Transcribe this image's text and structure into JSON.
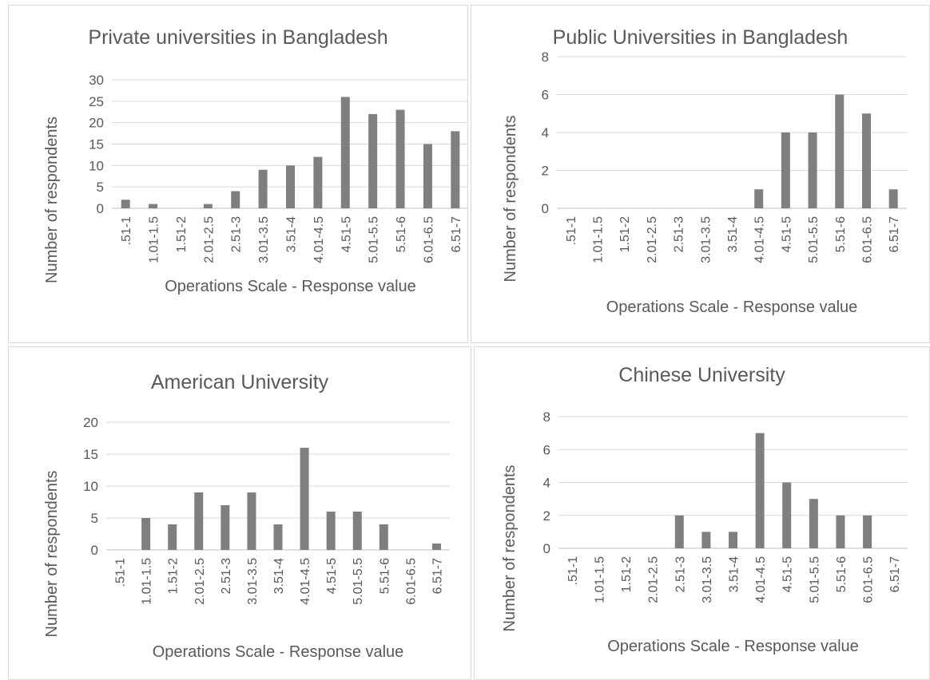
{
  "chart_data": [
    {
      "type": "bar",
      "title": "Private universities in Bangladesh",
      "xlabel": "Operations Scale - Response value",
      "ylabel": "Number of respondents",
      "categories": [
        ".51-1",
        "1.01-1.5",
        "1.51-2",
        "2.01-2.5",
        "2.51-3",
        "3.01-3.5",
        "3.51-4",
        "4.01-4.5",
        "4.51-5",
        "5.01-5.5",
        "5.51-6",
        "6.01-6.5",
        "6.51-7"
      ],
      "values": [
        2,
        1,
        0,
        1,
        4,
        9,
        10,
        12,
        26,
        22,
        23,
        15,
        18
      ],
      "ylim": [
        0,
        30
      ],
      "yticks": [
        0,
        5,
        10,
        15,
        20,
        25,
        30
      ],
      "grid": true,
      "color": "#7f7f7f"
    },
    {
      "type": "bar",
      "title": "Public Universities in Bangladesh",
      "xlabel": "Operations Scale - Response value",
      "ylabel": "Number of respondents",
      "categories": [
        ".51-1",
        "1.01-1.5",
        "1.51-2",
        "2.01-2.5",
        "2.51-3",
        "3.01-3.5",
        "3.51-4",
        "4.01-4.5",
        "4.51-5",
        "5.01-5.5",
        "5.51-6",
        "6.01-6.5",
        "6.51-7"
      ],
      "values": [
        0,
        0,
        0,
        0,
        0,
        0,
        0,
        1,
        4,
        4,
        6,
        5,
        1
      ],
      "ylim": [
        0,
        8
      ],
      "yticks": [
        0,
        2,
        4,
        6,
        8
      ],
      "grid": true,
      "color": "#7f7f7f"
    },
    {
      "type": "bar",
      "title": "American University",
      "xlabel": "Operations Scale - Response value",
      "ylabel": "Number of respondents",
      "categories": [
        ".51-1",
        "1.01-1.5",
        "1.51-2",
        "2.01-2.5",
        "2.51-3",
        "3.01-3.5",
        "3.51-4",
        "4.01-4.5",
        "4.51-5",
        "5.01-5.5",
        "5.51-6",
        "6.01-6.5",
        "6.51-7"
      ],
      "values": [
        0,
        5,
        4,
        9,
        7,
        9,
        4,
        16,
        6,
        6,
        4,
        0,
        1
      ],
      "ylim": [
        0,
        20
      ],
      "yticks": [
        0,
        5,
        10,
        15,
        20
      ],
      "grid": true,
      "color": "#7f7f7f"
    },
    {
      "type": "bar",
      "title": "Chinese University",
      "xlabel": "Operations Scale - Response value",
      "ylabel": "Number of respondents",
      "categories": [
        ".51-1",
        "1.01-1.5",
        "1.51-2",
        "2.01-2.5",
        "2.51-3",
        "3.01-3.5",
        "3.51-4",
        "4.01-4.5",
        "4.51-5",
        "5.01-5.5",
        "5.51-6",
        "6.01-6.5",
        "6.51-7"
      ],
      "values": [
        0,
        0,
        0,
        0,
        2,
        1,
        1,
        7,
        4,
        3,
        2,
        2,
        0
      ],
      "ylim": [
        0,
        8
      ],
      "yticks": [
        0,
        2,
        4,
        6,
        8
      ],
      "grid": true,
      "color": "#7f7f7f"
    }
  ]
}
